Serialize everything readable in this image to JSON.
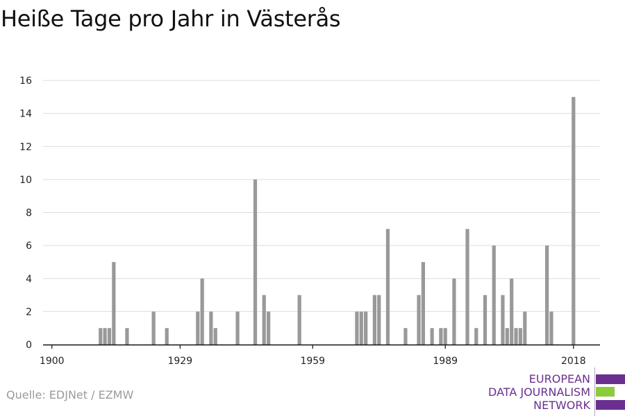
{
  "chart_data": {
    "type": "bar",
    "title": "Heiße Tage pro Jahr in Västerås",
    "xlabel": "",
    "ylabel": "",
    "xlim": [
      1898,
      2024
    ],
    "ylim": [
      0,
      16
    ],
    "y_ticks": [
      0,
      2,
      4,
      6,
      8,
      10,
      12,
      14,
      16
    ],
    "x_ticks": [
      1900,
      1929,
      1959,
      1989,
      2018
    ],
    "grid": true,
    "bar_color": "#999999",
    "series": [
      {
        "x": [
          1911,
          1912,
          1913,
          1914,
          1917,
          1923,
          1926,
          1933,
          1934,
          1936,
          1937,
          1942,
          1946,
          1948,
          1949,
          1956,
          1969,
          1970,
          1971,
          1973,
          1974,
          1976,
          1980,
          1983,
          1984,
          1986,
          1988,
          1989,
          1991,
          1994,
          1996,
          1998,
          2000,
          2002,
          2003,
          2004,
          2005,
          2006,
          2007,
          2012,
          2013,
          2018
        ],
        "values": [
          1,
          1,
          1,
          5,
          1,
          2,
          1,
          2,
          4,
          2,
          1,
          2,
          10,
          3,
          2,
          3,
          2,
          2,
          2,
          3,
          3,
          7,
          1,
          3,
          5,
          1,
          1,
          1,
          4,
          7,
          1,
          3,
          6,
          3,
          1,
          4,
          1,
          1,
          2,
          6,
          2,
          15
        ]
      }
    ]
  },
  "source": "Quelle: EDJNet / EZMW",
  "logo": {
    "lines": [
      "EUROPEAN",
      "DATA JOURNALISM",
      "NETWORK"
    ],
    "colors": {
      "purple": "#6a2f8f",
      "green": "#8ccc3a"
    }
  }
}
